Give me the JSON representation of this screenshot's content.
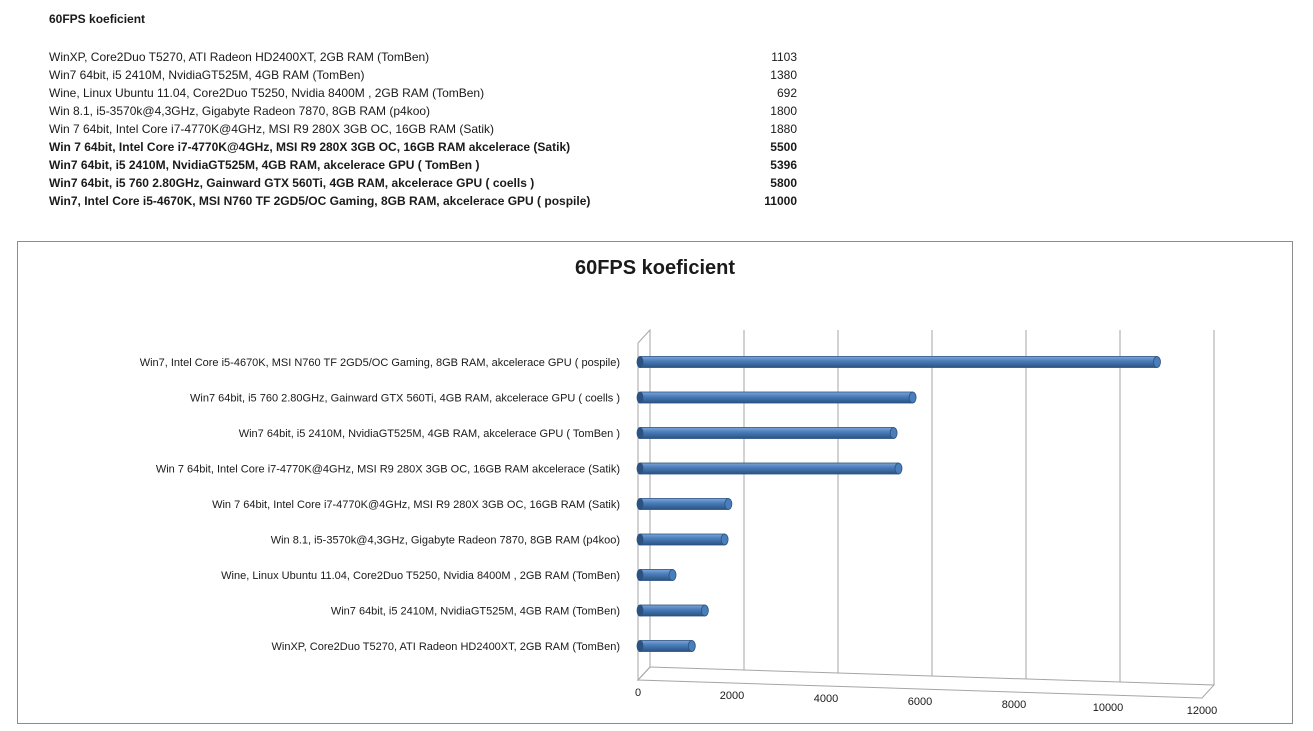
{
  "sheet": {
    "title": "60FPS koeficient",
    "rows": [
      {
        "label": "WinXP, Core2Duo T5270, ATI Radeon HD2400XT, 2GB RAM (TomBen)",
        "value": "1103",
        "bold": false
      },
      {
        "label": "Win7 64bit, i5 2410M, NvidiaGT525M, 4GB RAM (TomBen)",
        "value": "1380",
        "bold": false
      },
      {
        "label": "Wine, Linux Ubuntu 11.04, Core2Duo T5250, Nvidia 8400M ,  2GB RAM (TomBen)",
        "value": "692",
        "bold": false
      },
      {
        "label": "Win 8.1, i5-3570k@4,3GHz, Gigabyte Radeon 7870, 8GB RAM (p4koo)",
        "value": "1800",
        "bold": false
      },
      {
        "label": "Win 7 64bit, Intel Core i7-4770K@4GHz, MSI R9 280X 3GB OC,  16GB RAM (Satik)",
        "value": "1880",
        "bold": false
      },
      {
        "label": "Win 7 64bit, Intel Core i7-4770K@4GHz, MSI R9 280X 3GB OC,  16GB RAM  akcelerace (Satik)",
        "value": "5500",
        "bold": true
      },
      {
        "label": "Win7 64bit, i5 2410M, NvidiaGT525M, 4GB RAM, akcelerace GPU ( TomBen )",
        "value": "5396",
        "bold": true
      },
      {
        "label": "Win7 64bit, i5 760 2.80GHz, Gainward GTX 560Ti, 4GB RAM, akcelerace GPU ( coells )",
        "value": "5800",
        "bold": true
      },
      {
        "label": "Win7,  Intel Core i5-4670K,  MSI N760 TF 2GD5/OC Gaming, 8GB RAM, akcelerace GPU ( pospile)",
        "value": "11000",
        "bold": true
      }
    ]
  },
  "chart_data": {
    "type": "bar",
    "orientation": "horizontal",
    "style": "3d-cylinder",
    "title": "60FPS koeficient",
    "categories": [
      "WinXP, Core2Duo T5270, ATI Radeon HD2400XT, 2GB RAM (TomBen)",
      "Win7 64bit, i5 2410M, NvidiaGT525M, 4GB RAM (TomBen)",
      "Wine, Linux Ubuntu 11.04, Core2Duo T5250, Nvidia 8400M ,  2GB RAM (TomBen)",
      "Win 8.1, i5-3570k@4,3GHz, Gigabyte Radeon 7870, 8GB RAM (p4koo)",
      "Win 7 64bit, Intel Core i7-4770K@4GHz, MSI R9 280X 3GB OC,  16GB RAM (Satik)",
      "Win 7 64bit, Intel Core i7-4770K@4GHz, MSI R9 280X 3GB OC,  16GB RAM  akcelerace (Satik)",
      "Win7 64bit, i5 2410M, NvidiaGT525M, 4GB RAM, akcelerace GPU ( TomBen )",
      "Win7 64bit, i5 760 2.80GHz, Gainward GTX 560Ti, 4GB RAM, akcelerace GPU ( coells )",
      "Win7,  Intel Core i5-4670K,  MSI N760 TF 2GD5/OC Gaming, 8GB RAM, akcelerace GPU ( pospile)"
    ],
    "values": [
      1103,
      1380,
      692,
      1800,
      1880,
      5500,
      5396,
      5800,
      11000
    ],
    "xlim": [
      0,
      12000
    ],
    "xticks": [
      0,
      2000,
      4000,
      6000,
      8000,
      10000,
      12000
    ],
    "xtick_labels": [
      "0",
      "2000",
      "4000",
      "6000",
      "8000",
      "10000",
      "12000"
    ],
    "xlabel": "",
    "ylabel": "",
    "grid": true,
    "legend": "none",
    "bar_color": "#4a7ebb",
    "bar_dark_color": "#2c5282",
    "bar_light_color": "#7ea6d8"
  }
}
